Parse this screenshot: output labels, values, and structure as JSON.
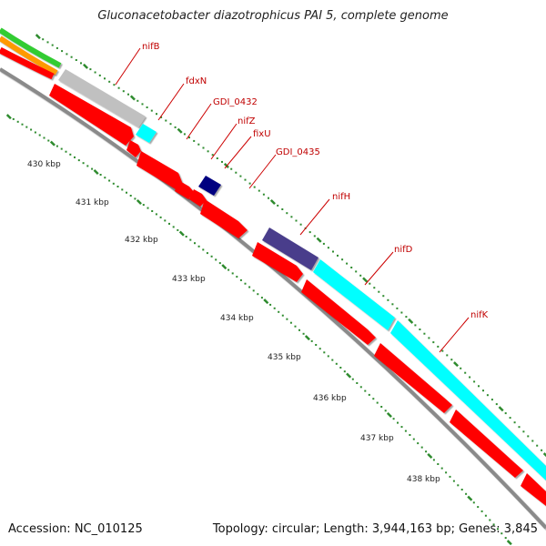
{
  "title": "Gluconacetobacter diazotrophicus PAI 5, complete genome",
  "footer": {
    "accession": "Accession: NC_010125",
    "summary": "Topology: circular; Length: 3,944,163 bp; Genes: 3,845"
  },
  "colors": {
    "cds": "#ff0000",
    "backbone": "#8a8a8a",
    "ticks": "#2e8b2e",
    "label_red": "#c00000",
    "green_track": "#33cc33",
    "orange_track": "#ff9900",
    "light_gray_gene": "#c0c0c0",
    "cyan_gene": "#00ffff",
    "navy_gene": "#000080",
    "slate_gene": "#483d8b"
  },
  "tick_labels": [
    {
      "text": "430 kbp"
    },
    {
      "text": "431 kbp"
    },
    {
      "text": "432 kbp"
    },
    {
      "text": "433 kbp"
    },
    {
      "text": "434 kbp"
    },
    {
      "text": "435 kbp"
    },
    {
      "text": "436 kbp"
    },
    {
      "text": "437 kbp"
    },
    {
      "text": "438 kbp"
    }
  ],
  "genes": [
    {
      "name": "nifB"
    },
    {
      "name": "fdxN"
    },
    {
      "name": "GDI_0432"
    },
    {
      "name": "nifZ"
    },
    {
      "name": "fixU"
    },
    {
      "name": "GDI_0435"
    },
    {
      "name": "nifH"
    },
    {
      "name": "nifD"
    },
    {
      "name": "nifK"
    }
  ]
}
